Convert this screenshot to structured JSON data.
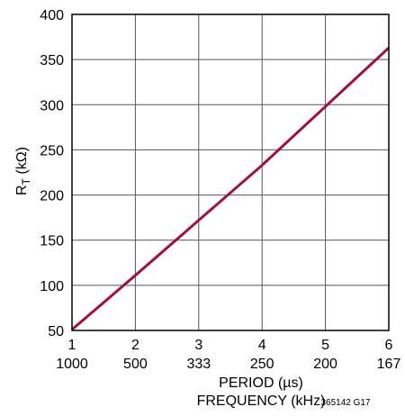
{
  "chart_data": {
    "type": "line",
    "title": "",
    "xlabel_primary": "PERIOD (µs)",
    "xlabel_secondary": "FREQUENCY (kHz)",
    "ylabel_main": "R",
    "ylabel_sub": "T",
    "ylabel_unit": " (kΩ)",
    "x_ticks": [
      "1",
      "2",
      "3",
      "4",
      "5",
      "6"
    ],
    "x_ticks_secondary": [
      "1000",
      "500",
      "333",
      "250",
      "200",
      "167"
    ],
    "y_ticks": [
      "50",
      "100",
      "150",
      "200",
      "250",
      "300",
      "350",
      "400"
    ],
    "xlim": [
      1,
      6
    ],
    "ylim": [
      50,
      400
    ],
    "grid": true,
    "series": [
      {
        "x": [
          1,
          2,
          3,
          4,
          5,
          6
        ],
        "y": [
          51,
          111,
          172,
          233,
          298,
          363
        ],
        "color": "#a0123b"
      }
    ],
    "annotation": "365142 G17"
  }
}
